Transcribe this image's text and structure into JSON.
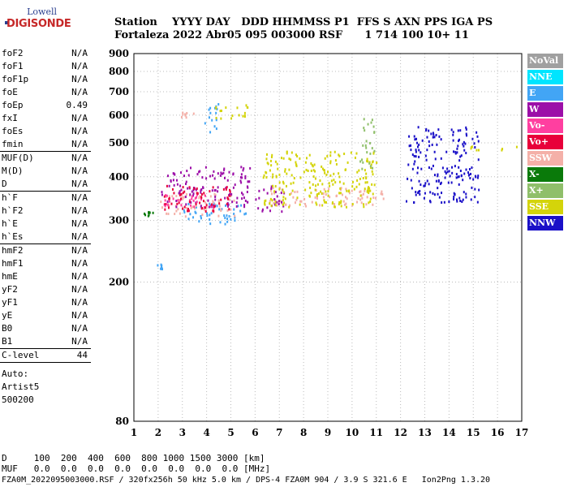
{
  "logo": {
    "top": "Lowell",
    "bottom": "DIGISONDE"
  },
  "header": {
    "columns": "Station    YYYY DAY   DDD HHMMSS P1  FFS S AXN PPS IGA PS",
    "values": "Fortaleza 2022 Abr05 095 003000 RSF      1 714 100 10+ 11"
  },
  "params_group1": [
    {
      "name": "foF2",
      "value": "N/A"
    },
    {
      "name": "foF1",
      "value": "N/A"
    },
    {
      "name": "foF1p",
      "value": "N/A"
    },
    {
      "name": "foE",
      "value": "N/A"
    },
    {
      "name": "foEp",
      "value": "0.49"
    },
    {
      "name": "fxI",
      "value": "N/A"
    },
    {
      "name": "foEs",
      "value": "N/A"
    },
    {
      "name": "fmin",
      "value": "N/A"
    }
  ],
  "params_group2": [
    {
      "name": "MUF(D)",
      "value": "N/A"
    },
    {
      "name": "M(D)",
      "value": "N/A"
    },
    {
      "name": "D",
      "value": "N/A"
    }
  ],
  "params_group3": [
    {
      "name": "h`F",
      "value": "N/A"
    },
    {
      "name": "h`F2",
      "value": "N/A"
    },
    {
      "name": "h`E",
      "value": "N/A"
    },
    {
      "name": "h`Es",
      "value": "N/A"
    }
  ],
  "params_group4": [
    {
      "name": "hmF2",
      "value": "N/A"
    },
    {
      "name": "hmF1",
      "value": "N/A"
    },
    {
      "name": "hmE",
      "value": "N/A"
    },
    {
      "name": "yF2",
      "value": "N/A"
    },
    {
      "name": "yF1",
      "value": "N/A"
    },
    {
      "name": "yE",
      "value": "N/A"
    },
    {
      "name": "B0",
      "value": "N/A"
    },
    {
      "name": "B1",
      "value": "N/A"
    }
  ],
  "clevel": {
    "name": "C-level",
    "value": "44"
  },
  "auto": {
    "label": "Auto:",
    "artist": "Artist5",
    "code": "500200"
  },
  "bottom": {
    "d_line": "D     100  200  400  600  800 1000 1500 3000 [km]",
    "muf_line": "MUF   0.0  0.0  0.0  0.0  0.0  0.0  0.0  0.0 [MHz]"
  },
  "footer": "FZA0M_2022095003000.RSF / 320fx256h 50 kHz 5.0 km / DPS-4 FZA0M 904 / 3.9 S 321.6 E   Ion2Png 1.3.20",
  "legend": [
    {
      "label": "NoVal",
      "color": "#a0a0a0"
    },
    {
      "label": "NNE",
      "color": "#00e5ff"
    },
    {
      "label": "E",
      "color": "#42a5f5"
    },
    {
      "label": "W",
      "color": "#9c0fa8"
    },
    {
      "label": "Vo-",
      "color": "#ff3fa0"
    },
    {
      "label": "Vo+",
      "color": "#e8003a"
    },
    {
      "label": "SSW",
      "color": "#f4b0a8"
    },
    {
      "label": "X-",
      "color": "#0a7a0a"
    },
    {
      "label": "X+",
      "color": "#8fbf6a"
    },
    {
      "label": "SSE",
      "color": "#d4d40a"
    },
    {
      "label": "NNW",
      "color": "#1a10c8"
    }
  ],
  "chart_data": {
    "type": "scatter",
    "title": "",
    "xlabel": "",
    "ylabel": "",
    "xlim": [
      1,
      17
    ],
    "ylim": [
      80,
      900
    ],
    "yscale": "log",
    "x_ticks": [
      1,
      2,
      3,
      4,
      5,
      6,
      7,
      8,
      9,
      10,
      11,
      12,
      13,
      14,
      15,
      16,
      17
    ],
    "y_ticks": [
      80,
      200,
      300,
      400,
      500,
      600,
      700,
      800,
      900
    ],
    "grid": "dotted",
    "series": [
      {
        "name": "E",
        "clusters": [
          {
            "x": [
              1.9,
              2.2
            ],
            "y": [
              218,
              226
            ]
          },
          {
            "x": [
              3.0,
              5.6
            ],
            "y": [
              295,
              340
            ]
          },
          {
            "x": [
              3.9,
              4.6
            ],
            "y": [
              540,
              650
            ]
          }
        ]
      },
      {
        "name": "SSW",
        "clusters": [
          {
            "x": [
              2.0,
              5.2
            ],
            "y": [
              310,
              360
            ]
          },
          {
            "x": [
              6.5,
              11.3
            ],
            "y": [
              332,
              375
            ]
          },
          {
            "x": [
              2.7,
              3.5
            ],
            "y": [
              595,
              615
            ]
          }
        ]
      },
      {
        "name": "W",
        "clusters": [
          {
            "x": [
              2.1,
              5.8
            ],
            "y": [
              330,
              430
            ]
          },
          {
            "x": [
              6.0,
              7.2
            ],
            "y": [
              320,
              380
            ]
          }
        ]
      },
      {
        "name": "Vo-",
        "clusters": [
          {
            "x": [
              2.2,
              4.5
            ],
            "y": [
              325,
              360
            ]
          }
        ]
      },
      {
        "name": "SSE",
        "clusters": [
          {
            "x": [
              6.3,
              11.0
            ],
            "y": [
              330,
              480
            ]
          },
          {
            "x": [
              4.3,
              5.8
            ],
            "y": [
              590,
              650
            ]
          },
          {
            "x": [
              14.8,
              16.9
            ],
            "y": [
              480,
              492
            ]
          }
        ]
      },
      {
        "name": "X+",
        "clusters": [
          {
            "x": [
              10.3,
              10.9
            ],
            "y": [
              420,
              590
            ]
          }
        ]
      },
      {
        "name": "NNW",
        "clusters": [
          {
            "x": [
              12.2,
              15.2
            ],
            "y": [
              340,
              560
            ]
          }
        ]
      },
      {
        "name": "Vo+",
        "clusters": [
          {
            "x": [
              2.2,
              5.0
            ],
            "y": [
              320,
              380
            ]
          }
        ]
      },
      {
        "name": "X-",
        "clusters": [
          {
            "x": [
              1.3,
              1.8
            ],
            "y": [
              308,
              320
            ]
          }
        ]
      }
    ]
  }
}
